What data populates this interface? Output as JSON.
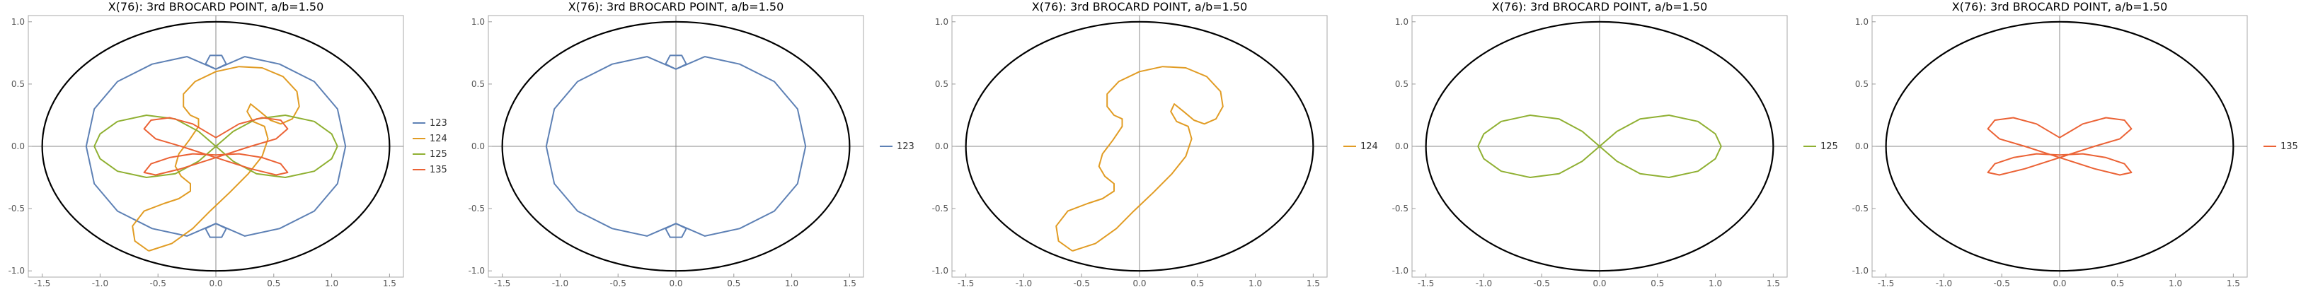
{
  "figure": {
    "title": "X(76): 3rd BROCARD POINT, a/b=1.50"
  },
  "colors": {
    "123": "#5e81b5",
    "124": "#e19c24",
    "125": "#8fb032",
    "135": "#eb6235",
    "ellipse": "#000000"
  },
  "chart_data": [
    {
      "type": "line",
      "title": "X(76): 3rd BROCARD POINT, a/b=1.50",
      "xlim": [
        -1.62,
        1.62
      ],
      "ylim": [
        -1.05,
        1.05
      ],
      "xticks": [
        -1.5,
        -1.0,
        -0.5,
        0.0,
        0.5,
        1.0,
        1.5
      ],
      "yticks": [
        -1.0,
        -0.5,
        0.0,
        0.5,
        1.0
      ],
      "xtick_labels": [
        "-1.5",
        "-1.0",
        "-0.5",
        "0.0",
        "0.5",
        "1.0",
        "1.5"
      ],
      "ytick_labels": [
        "-1.0",
        "-0.5",
        "0.0",
        "0.5",
        "1.0"
      ],
      "ellipse": {
        "a": 1.5,
        "b": 1.0
      },
      "legend": [
        "123",
        "124",
        "125",
        "135"
      ],
      "legend_position": "right",
      "series": [
        {
          "name": "123",
          "curve": "123"
        },
        {
          "name": "124",
          "curve": "124"
        },
        {
          "name": "125",
          "curve": "125"
        },
        {
          "name": "135",
          "curve": "135"
        }
      ]
    },
    {
      "type": "line",
      "title": "X(76): 3rd BROCARD POINT, a/b=1.50",
      "xlim": [
        -1.62,
        1.62
      ],
      "ylim": [
        -1.05,
        1.05
      ],
      "xticks": [
        -1.5,
        -1.0,
        -0.5,
        0.0,
        0.5,
        1.0,
        1.5
      ],
      "yticks": [
        -1.0,
        -0.5,
        0.0,
        0.5,
        1.0
      ],
      "xtick_labels": [
        "-1.5",
        "-1.0",
        "-0.5",
        "0.0",
        "0.5",
        "1.0",
        "1.5"
      ],
      "ytick_labels": [
        "-1.0",
        "-0.5",
        "0.0",
        "0.5",
        "1.0"
      ],
      "ellipse": {
        "a": 1.5,
        "b": 1.0
      },
      "legend": [
        "123"
      ],
      "legend_position": "right",
      "series": [
        {
          "name": "123",
          "curve": "123"
        }
      ]
    },
    {
      "type": "line",
      "title": "X(76): 3rd BROCARD POINT, a/b=1.50",
      "xlim": [
        -1.62,
        1.62
      ],
      "ylim": [
        -1.05,
        1.05
      ],
      "xticks": [
        -1.5,
        -1.0,
        -0.5,
        0.0,
        0.5,
        1.0,
        1.5
      ],
      "yticks": [
        -1.0,
        -0.5,
        0.0,
        0.5,
        1.0
      ],
      "xtick_labels": [
        "-1.5",
        "-1.0",
        "-0.5",
        "0.0",
        "0.5",
        "1.0",
        "1.5"
      ],
      "ytick_labels": [
        "-1.0",
        "-0.5",
        "0.0",
        "0.5",
        "1.0"
      ],
      "ellipse": {
        "a": 1.5,
        "b": 1.0
      },
      "legend": [
        "124"
      ],
      "legend_position": "right",
      "series": [
        {
          "name": "124",
          "curve": "124"
        }
      ]
    },
    {
      "type": "line",
      "title": "X(76): 3rd BROCARD POINT, a/b=1.50",
      "xlim": [
        -1.62,
        1.62
      ],
      "ylim": [
        -1.05,
        1.05
      ],
      "xticks": [
        -1.5,
        -1.0,
        -0.5,
        0.0,
        0.5,
        1.0,
        1.5
      ],
      "yticks": [
        -1.0,
        -0.5,
        0.0,
        0.5,
        1.0
      ],
      "xtick_labels": [
        "-1.5",
        "-1.0",
        "-0.5",
        "0.0",
        "0.5",
        "1.0",
        "1.5"
      ],
      "ytick_labels": [
        "-1.0",
        "-0.5",
        "0.0",
        "0.5",
        "1.0"
      ],
      "ellipse": {
        "a": 1.5,
        "b": 1.0
      },
      "legend": [
        "125"
      ],
      "legend_position": "right",
      "series": [
        {
          "name": "125",
          "curve": "125"
        }
      ]
    },
    {
      "type": "line",
      "title": "X(76): 3rd BROCARD POINT, a/b=1.50",
      "xlim": [
        -1.62,
        1.62
      ],
      "ylim": [
        -1.05,
        1.05
      ],
      "xticks": [
        -1.5,
        -1.0,
        -0.5,
        0.0,
        0.5,
        1.0,
        1.5
      ],
      "yticks": [
        -1.0,
        -0.5,
        0.0,
        0.5,
        1.0
      ],
      "xtick_labels": [
        "-1.5",
        "-1.0",
        "-0.5",
        "0.0",
        "0.5",
        "1.0",
        "1.5"
      ],
      "ytick_labels": [
        "-1.0",
        "-0.5",
        "0.0",
        "0.5",
        "1.0"
      ],
      "ellipse": {
        "a": 1.5,
        "b": 1.0
      },
      "legend": [
        "135"
      ],
      "legend_position": "right",
      "series": [
        {
          "name": "135",
          "curve": "135"
        }
      ]
    }
  ],
  "curves": {
    "123": [
      [
        0.0,
        0.62
      ],
      [
        0.09,
        0.66
      ],
      [
        0.05,
        0.73
      ],
      [
        -0.05,
        0.73
      ],
      [
        -0.09,
        0.66
      ],
      [
        0.0,
        0.62
      ],
      [
        -0.25,
        0.72
      ],
      [
        -0.55,
        0.66
      ],
      [
        -0.85,
        0.52
      ],
      [
        -1.05,
        0.3
      ],
      [
        -1.12,
        0.0
      ],
      [
        -1.05,
        -0.3
      ],
      [
        -0.85,
        -0.52
      ],
      [
        -0.55,
        -0.66
      ],
      [
        -0.25,
        -0.72
      ],
      [
        0.0,
        -0.62
      ],
      [
        -0.09,
        -0.66
      ],
      [
        -0.05,
        -0.73
      ],
      [
        0.05,
        -0.73
      ],
      [
        0.09,
        -0.66
      ],
      [
        0.0,
        -0.62
      ],
      [
        0.25,
        -0.72
      ],
      [
        0.55,
        -0.66
      ],
      [
        0.85,
        -0.52
      ],
      [
        1.05,
        -0.3
      ],
      [
        1.12,
        0.0
      ],
      [
        1.05,
        0.3
      ],
      [
        0.85,
        0.52
      ],
      [
        0.55,
        0.66
      ],
      [
        0.25,
        0.72
      ],
      [
        0.0,
        0.62
      ]
    ],
    "124": [
      [
        -0.58,
        -0.84
      ],
      [
        -0.7,
        -0.76
      ],
      [
        -0.72,
        -0.64
      ],
      [
        -0.62,
        -0.52
      ],
      [
        -0.45,
        -0.46
      ],
      [
        -0.32,
        -0.42
      ],
      [
        -0.22,
        -0.36
      ],
      [
        -0.22,
        -0.3
      ],
      [
        -0.3,
        -0.24
      ],
      [
        -0.35,
        -0.16
      ],
      [
        -0.32,
        -0.06
      ],
      [
        -0.23,
        0.05
      ],
      [
        -0.15,
        0.16
      ],
      [
        -0.15,
        0.22
      ],
      [
        -0.22,
        0.25
      ],
      [
        -0.28,
        0.32
      ],
      [
        -0.28,
        0.42
      ],
      [
        -0.18,
        0.52
      ],
      [
        0.0,
        0.6
      ],
      [
        0.2,
        0.64
      ],
      [
        0.4,
        0.63
      ],
      [
        0.58,
        0.56
      ],
      [
        0.7,
        0.44
      ],
      [
        0.72,
        0.32
      ],
      [
        0.66,
        0.22
      ],
      [
        0.56,
        0.18
      ],
      [
        0.47,
        0.21
      ],
      [
        0.38,
        0.28
      ],
      [
        0.3,
        0.34
      ],
      [
        0.27,
        0.28
      ],
      [
        0.32,
        0.2
      ],
      [
        0.42,
        0.16
      ],
      [
        0.45,
        0.06
      ],
      [
        0.4,
        -0.08
      ],
      [
        0.28,
        -0.22
      ],
      [
        0.12,
        -0.37
      ],
      [
        -0.05,
        -0.52
      ],
      [
        -0.2,
        -0.66
      ],
      [
        -0.38,
        -0.78
      ],
      [
        -0.58,
        -0.84
      ]
    ],
    "125": [
      [
        0.0,
        0.0
      ],
      [
        -0.15,
        0.12
      ],
      [
        -0.35,
        0.22
      ],
      [
        -0.6,
        0.25
      ],
      [
        -0.85,
        0.2
      ],
      [
        -1.0,
        0.1
      ],
      [
        -1.05,
        0.0
      ],
      [
        -1.0,
        -0.1
      ],
      [
        -0.85,
        -0.2
      ],
      [
        -0.6,
        -0.25
      ],
      [
        -0.35,
        -0.22
      ],
      [
        -0.15,
        -0.12
      ],
      [
        0.0,
        0.0
      ],
      [
        0.15,
        0.12
      ],
      [
        0.35,
        0.22
      ],
      [
        0.6,
        0.25
      ],
      [
        0.85,
        0.2
      ],
      [
        1.0,
        0.1
      ],
      [
        1.05,
        0.0
      ],
      [
        1.0,
        -0.1
      ],
      [
        0.85,
        -0.2
      ],
      [
        0.6,
        -0.25
      ],
      [
        0.35,
        -0.22
      ],
      [
        0.15,
        -0.12
      ],
      [
        0.0,
        0.0
      ]
    ],
    "135": [
      [
        0.0,
        0.07
      ],
      [
        0.2,
        0.18
      ],
      [
        0.4,
        0.23
      ],
      [
        0.56,
        0.21
      ],
      [
        0.62,
        0.14
      ],
      [
        0.52,
        0.06
      ],
      [
        0.3,
        0.0
      ],
      [
        0.0,
        -0.09
      ],
      [
        -0.3,
        -0.18
      ],
      [
        -0.52,
        -0.23
      ],
      [
        -0.62,
        -0.21
      ],
      [
        -0.56,
        -0.14
      ],
      [
        -0.4,
        -0.09
      ],
      [
        -0.2,
        -0.06
      ],
      [
        0.0,
        -0.07
      ],
      [
        0.2,
        -0.06
      ],
      [
        0.4,
        -0.09
      ],
      [
        0.56,
        -0.14
      ],
      [
        0.62,
        -0.21
      ],
      [
        0.52,
        -0.23
      ],
      [
        0.3,
        -0.18
      ],
      [
        0.0,
        -0.09
      ],
      [
        -0.3,
        0.0
      ],
      [
        -0.52,
        0.06
      ],
      [
        -0.62,
        0.14
      ],
      [
        -0.56,
        0.21
      ],
      [
        -0.4,
        0.23
      ],
      [
        -0.2,
        0.18
      ],
      [
        0.0,
        0.07
      ]
    ]
  }
}
